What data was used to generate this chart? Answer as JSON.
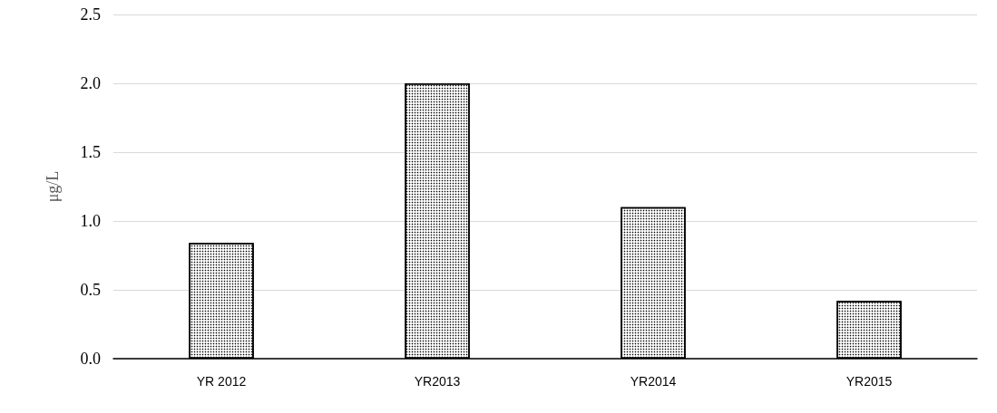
{
  "chart_data": {
    "type": "bar",
    "ylabel": "μg/L",
    "categories": [
      "YR 2012",
      "YR2013",
      "YR2014",
      "YR2015"
    ],
    "values": [
      0.84,
      2.0,
      1.1,
      0.42
    ],
    "color": "#ffffff",
    "ylim": [
      0,
      2.5
    ],
    "yticks": [
      {
        "value": 0,
        "label": "0.0"
      },
      {
        "value": 0.5,
        "label": "0.5"
      },
      {
        "value": 1,
        "label": "1.0"
      },
      {
        "value": 1.5,
        "label": "1.5"
      },
      {
        "value": 2,
        "label": "2.0"
      },
      {
        "value": 2.5,
        "label": "2.5"
      }
    ],
    "grid": "y"
  }
}
